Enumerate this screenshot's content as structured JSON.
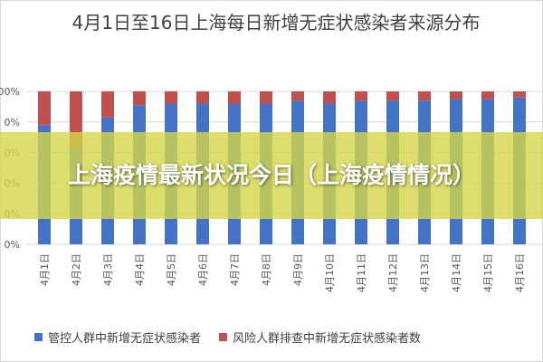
{
  "chart_data": {
    "type": "bar",
    "stacked": "percent",
    "title": "4月1日至16日上海每日新增无症状感染者来源分布",
    "categories": [
      "4月1日",
      "4月2日",
      "4月3日",
      "4月4日",
      "4月5日",
      "4月6日",
      "4月7日",
      "4月8日",
      "4月9日",
      "4月10日",
      "4月11日",
      "4月12日",
      "4月13日",
      "4月14日",
      "4月15日",
      "4月16日"
    ],
    "series": [
      {
        "name": "管控人群中新增无症状感染者",
        "color": "#4472c4",
        "values": [
          78,
          63,
          83,
          91,
          92,
          92,
          92,
          92,
          94,
          92,
          94,
          94,
          94,
          95,
          95,
          96
        ]
      },
      {
        "name": "风险人群排查中新增无症状感染者数",
        "color": "#c0504d",
        "values": [
          22,
          37,
          17,
          9,
          8,
          8,
          8,
          8,
          6,
          8,
          6,
          6,
          6,
          5,
          5,
          4
        ]
      }
    ],
    "y_tick_labels": [
      "0%",
      "0%",
      "0%",
      "0%",
      "0%",
      "00%"
    ],
    "ylim": [
      0,
      100
    ],
    "grid": true,
    "legend_position": "bottom"
  },
  "overlay": {
    "banner_text": "上海疫情最新状况今日（上海疫情情况）"
  },
  "colors": {
    "banner": "#d4d648",
    "axis_text": "#595959",
    "gridline": "#d9d9d9"
  }
}
